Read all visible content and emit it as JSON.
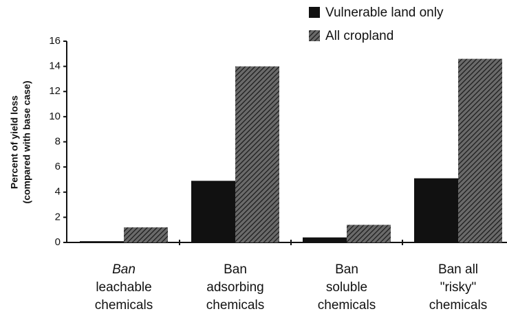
{
  "chart_data": {
    "type": "bar",
    "y_label": [
      "Percent of yield loss",
      "(compared with base case)"
    ],
    "categories": [
      "Ban\nleachable\nchemicals",
      "Ban\nadsorbing\nchemicals",
      "Ban\nsoluble\nchemicals",
      "Ban all\n\"risky\"\nchemicals"
    ],
    "series": [
      {
        "name": "Vulnerable land only",
        "color": "#111111",
        "values": [
          0.1,
          4.9,
          0.4,
          5.1
        ]
      },
      {
        "name": "All cropland",
        "color": "hatch",
        "values": [
          1.2,
          14.0,
          1.4,
          14.6
        ]
      }
    ],
    "ylim": [
      0,
      16
    ],
    "yticks": [
      0,
      2,
      4,
      6,
      8,
      10,
      12,
      14,
      16
    ]
  }
}
